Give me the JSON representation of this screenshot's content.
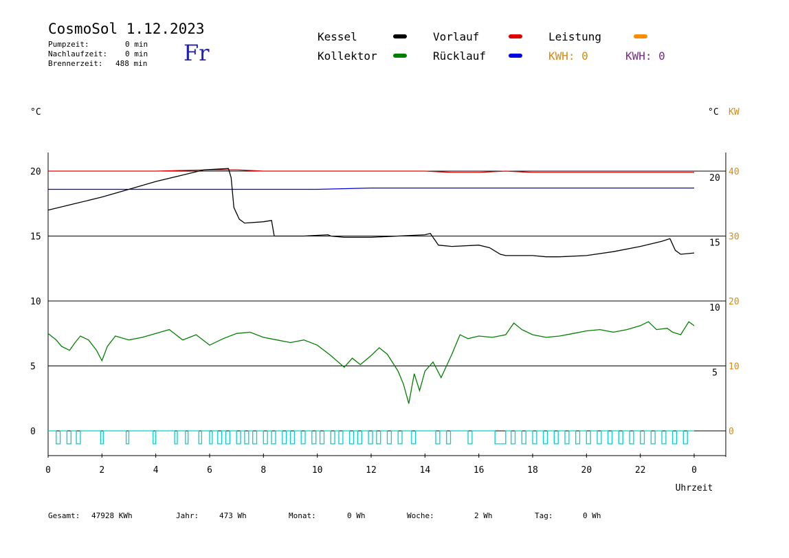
{
  "header": {
    "title": "CosmoSol 1.12.2023",
    "day": "Fr",
    "stats": [
      {
        "label": "Pumpzeit:",
        "value": "0 min"
      },
      {
        "label": "Nachlaufzeit:",
        "value": "0 min"
      },
      {
        "label": "Brennerzeit:",
        "value": "488 min"
      }
    ]
  },
  "legend": {
    "kessel": "Kessel",
    "kollektor": "Kollektor",
    "vorlauf": "Vorlauf",
    "ruecklauf": "Rücklauf",
    "leistung": "Leistung",
    "kwh1": "KWH: 0",
    "kwh2": "KWH: 0"
  },
  "colors": {
    "kessel": "#000000",
    "kollektor": "#008000",
    "vorlauf": "#e00000",
    "ruecklauf": "#0000e0",
    "leistung": "#ff8c00",
    "pump": "#00d0d0",
    "kwh_orange": "#d68a12",
    "kwh_purple": "#7a2a8a"
  },
  "axes": {
    "left_unit": "°C",
    "right_unit_c": "°C",
    "right_unit_kw": "KW",
    "xlabel": "Uhrzeit"
  },
  "footer": [
    {
      "label": "Gesamt:",
      "value": "47928 KWh"
    },
    {
      "label": "Jahr:",
      "value": "473 Wh"
    },
    {
      "label": "Monat:",
      "value": "0 Wh"
    },
    {
      "label": "Woche:",
      "value": "2 Wh"
    },
    {
      "label": "Tag:",
      "value": "0 Wh"
    }
  ],
  "chart_data": {
    "type": "line",
    "x_ticks": [
      "0",
      "2",
      "4",
      "6",
      "8",
      "10",
      "12",
      "14",
      "16",
      "18",
      "20",
      "22",
      "0"
    ],
    "left_y_ticks": [
      "0",
      "5",
      "10",
      "15",
      "20"
    ],
    "right_inner_ticks": [
      "5",
      "10",
      "15",
      "20"
    ],
    "right_kw_ticks": [
      "0",
      "10",
      "20",
      "30",
      "40"
    ],
    "xlim": [
      0,
      24
    ],
    "ylim": [
      0,
      21
    ],
    "grid": true,
    "series": [
      {
        "name": "Vorlauf",
        "color": "#e00000",
        "x": [
          0,
          2,
          4,
          6,
          7,
          8,
          10,
          12,
          14,
          15,
          16,
          17,
          18,
          20,
          22,
          24
        ],
        "y": [
          20.0,
          20.0,
          20.0,
          20.1,
          20.1,
          20.0,
          20.0,
          20.0,
          20.0,
          19.9,
          19.9,
          20.0,
          19.9,
          19.9,
          19.9,
          19.9
        ]
      },
      {
        "name": "Rücklauf",
        "color": "#0000e0",
        "x": [
          0,
          2,
          4,
          6,
          8,
          10,
          12,
          14,
          16,
          18,
          20,
          22,
          24
        ],
        "y": [
          18.6,
          18.6,
          18.6,
          18.6,
          18.6,
          18.6,
          18.7,
          18.7,
          18.7,
          18.7,
          18.7,
          18.7,
          18.7
        ]
      },
      {
        "name": "Kessel",
        "color": "#000000",
        "x": [
          0,
          1,
          2,
          3,
          4,
          5,
          5.8,
          6.7,
          6.8,
          6.9,
          7.1,
          7.3,
          8.0,
          8.3,
          8.4,
          8.8,
          9.5,
          10.4,
          10.5,
          11.0,
          12.0,
          13.0,
          14.0,
          14.2,
          14.5,
          15.0,
          16.0,
          16.4,
          16.8,
          17.0,
          18.0,
          18.5,
          19.0,
          20.0,
          21.0,
          22.0,
          22.8,
          23.1,
          23.3,
          23.5,
          24.0
        ],
        "y": [
          17.0,
          17.5,
          18.0,
          18.6,
          19.2,
          19.7,
          20.1,
          20.2,
          19.5,
          17.2,
          16.3,
          16.0,
          16.1,
          16.2,
          15.0,
          15.0,
          15.0,
          15.1,
          15.0,
          14.9,
          14.9,
          15.0,
          15.1,
          15.2,
          14.3,
          14.2,
          14.3,
          14.1,
          13.6,
          13.5,
          13.5,
          13.4,
          13.4,
          13.5,
          13.8,
          14.2,
          14.6,
          14.8,
          13.9,
          13.6,
          13.7
        ]
      },
      {
        "name": "Kollektor",
        "color": "#008000",
        "x": [
          0,
          0.3,
          0.5,
          0.8,
          1.0,
          1.2,
          1.5,
          1.8,
          2.0,
          2.2,
          2.5,
          3.0,
          3.5,
          4.0,
          4.5,
          5.0,
          5.5,
          6.0,
          6.5,
          7.0,
          7.5,
          8.0,
          8.5,
          9.0,
          9.5,
          10.0,
          10.5,
          11.0,
          11.3,
          11.6,
          12.0,
          12.3,
          12.6,
          13.0,
          13.2,
          13.4,
          13.6,
          13.8,
          14.0,
          14.3,
          14.6,
          15.0,
          15.3,
          15.6,
          16.0,
          16.5,
          17.0,
          17.3,
          17.6,
          18.0,
          18.5,
          19.0,
          19.5,
          20.0,
          20.5,
          21.0,
          21.5,
          22.0,
          22.3,
          22.6,
          23.0,
          23.2,
          23.5,
          23.8,
          24.0
        ],
        "y": [
          7.5,
          7.0,
          6.5,
          6.2,
          6.8,
          7.3,
          7.0,
          6.2,
          5.4,
          6.5,
          7.3,
          7.0,
          7.2,
          7.5,
          7.8,
          7.0,
          7.4,
          6.6,
          7.1,
          7.5,
          7.6,
          7.2,
          7.0,
          6.8,
          7.0,
          6.6,
          5.8,
          4.9,
          5.6,
          5.1,
          5.8,
          6.4,
          5.9,
          4.6,
          3.6,
          2.1,
          4.4,
          3.1,
          4.6,
          5.3,
          4.1,
          5.9,
          7.4,
          7.1,
          7.3,
          7.2,
          7.4,
          8.3,
          7.8,
          7.4,
          7.2,
          7.3,
          7.5,
          7.7,
          7.8,
          7.6,
          7.8,
          8.1,
          8.4,
          7.8,
          7.9,
          7.6,
          7.4,
          8.4,
          8.1
        ]
      }
    ],
    "pump_signal": {
      "name": "Pumpe",
      "color": "#00d0d0",
      "on_intervals": [
        [
          0.3,
          0.45
        ],
        [
          0.7,
          0.85
        ],
        [
          1.05,
          1.2
        ],
        [
          1.95,
          2.05
        ],
        [
          2.9,
          3.0
        ],
        [
          3.9,
          4.0
        ],
        [
          4.7,
          4.8
        ],
        [
          5.1,
          5.2
        ],
        [
          5.6,
          5.7
        ],
        [
          6.0,
          6.1
        ],
        [
          6.3,
          6.45
        ],
        [
          6.6,
          6.75
        ],
        [
          7.0,
          7.15
        ],
        [
          7.3,
          7.45
        ],
        [
          7.6,
          7.75
        ],
        [
          8.0,
          8.15
        ],
        [
          8.3,
          8.45
        ],
        [
          8.7,
          8.85
        ],
        [
          9.0,
          9.15
        ],
        [
          9.4,
          9.55
        ],
        [
          9.8,
          9.95
        ],
        [
          10.1,
          10.25
        ],
        [
          10.5,
          10.65
        ],
        [
          10.8,
          10.95
        ],
        [
          11.2,
          11.35
        ],
        [
          11.5,
          11.65
        ],
        [
          11.9,
          12.05
        ],
        [
          12.2,
          12.35
        ],
        [
          12.6,
          12.75
        ],
        [
          13.0,
          13.15
        ],
        [
          13.5,
          13.65
        ],
        [
          14.4,
          14.55
        ],
        [
          14.8,
          14.95
        ],
        [
          15.6,
          15.75
        ],
        [
          16.6,
          17.0
        ],
        [
          17.2,
          17.35
        ],
        [
          17.6,
          17.75
        ],
        [
          18.0,
          18.15
        ],
        [
          18.4,
          18.55
        ],
        [
          18.8,
          18.95
        ],
        [
          19.2,
          19.35
        ],
        [
          19.6,
          19.75
        ],
        [
          20.0,
          20.15
        ],
        [
          20.4,
          20.55
        ],
        [
          20.8,
          20.95
        ],
        [
          21.2,
          21.35
        ],
        [
          21.6,
          21.75
        ],
        [
          22.0,
          22.15
        ],
        [
          22.4,
          22.55
        ],
        [
          22.8,
          22.95
        ],
        [
          23.2,
          23.35
        ],
        [
          23.6,
          23.75
        ]
      ]
    },
    "xlabel": "Uhrzeit",
    "ylabel": "°C"
  }
}
